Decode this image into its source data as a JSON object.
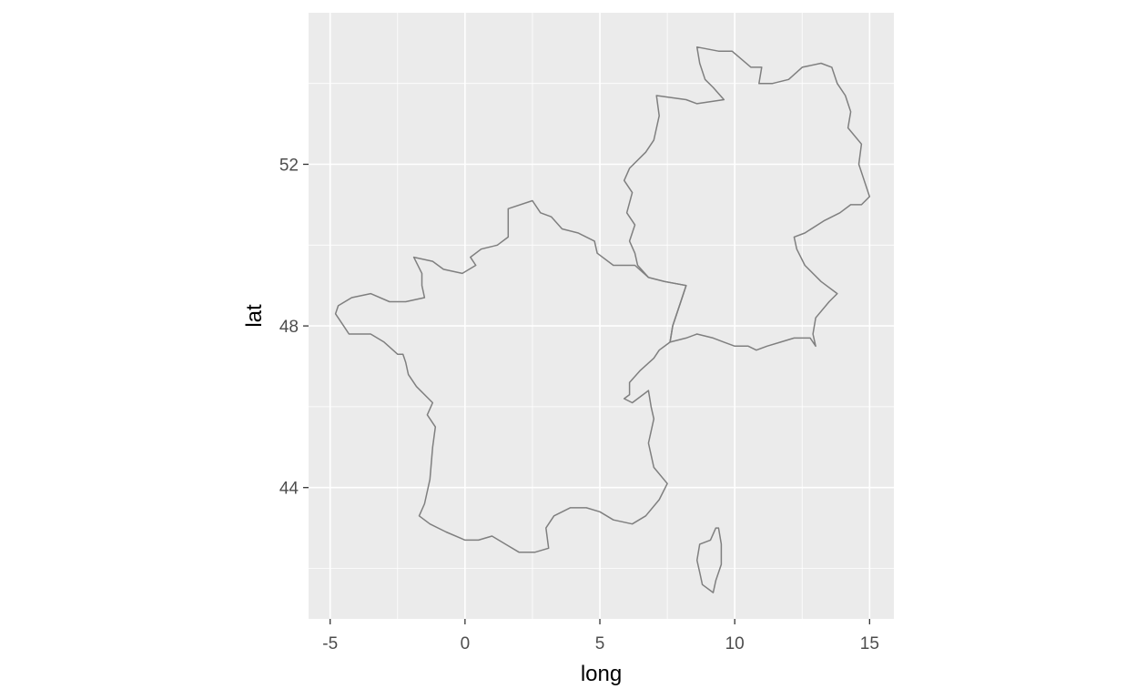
{
  "chart_data": {
    "type": "map",
    "xlabel": "long",
    "ylabel": "lat",
    "xlim": [
      -5.8,
      15.9
    ],
    "ylim": [
      40.75,
      55.75
    ],
    "x_ticks": [
      {
        "value": -5,
        "label": "-5"
      },
      {
        "value": 0,
        "label": "0"
      },
      {
        "value": 5,
        "label": "5"
      },
      {
        "value": 10,
        "label": "10"
      },
      {
        "value": 15,
        "label": "15"
      }
    ],
    "y_ticks": [
      {
        "value": 44,
        "label": "44"
      },
      {
        "value": 48,
        "label": "48"
      },
      {
        "value": 52,
        "label": "52"
      }
    ],
    "x_minor": [
      -2.5,
      2.5,
      7.5,
      12.5
    ],
    "y_minor": [
      42,
      46,
      50,
      54
    ],
    "grid": true,
    "colors": {
      "panel": "#ebebeb",
      "grid": "#ffffff",
      "outline": "#7f7f7f"
    },
    "regions": [
      {
        "name": "France",
        "coords": [
          [
            2.5,
            51.1
          ],
          [
            2.8,
            50.8
          ],
          [
            3.2,
            50.7
          ],
          [
            3.6,
            50.4
          ],
          [
            4.2,
            50.3
          ],
          [
            4.8,
            50.1
          ],
          [
            4.9,
            49.8
          ],
          [
            5.5,
            49.5
          ],
          [
            6.3,
            49.5
          ],
          [
            6.8,
            49.2
          ],
          [
            7.4,
            49.1
          ],
          [
            8.2,
            49.0
          ],
          [
            8.0,
            48.6
          ],
          [
            7.7,
            48.0
          ],
          [
            7.6,
            47.6
          ],
          [
            7.2,
            47.4
          ],
          [
            7.0,
            47.2
          ],
          [
            6.5,
            46.9
          ],
          [
            6.1,
            46.6
          ],
          [
            6.1,
            46.3
          ],
          [
            5.9,
            46.2
          ],
          [
            6.2,
            46.1
          ],
          [
            6.8,
            46.4
          ],
          [
            6.9,
            46.0
          ],
          [
            7.0,
            45.7
          ],
          [
            6.8,
            45.1
          ],
          [
            7.0,
            44.5
          ],
          [
            7.5,
            44.1
          ],
          [
            7.2,
            43.7
          ],
          [
            6.7,
            43.3
          ],
          [
            6.2,
            43.1
          ],
          [
            5.5,
            43.2
          ],
          [
            5.0,
            43.4
          ],
          [
            4.5,
            43.5
          ],
          [
            3.9,
            43.5
          ],
          [
            3.3,
            43.3
          ],
          [
            3.0,
            43.0
          ],
          [
            3.1,
            42.5
          ],
          [
            2.6,
            42.4
          ],
          [
            2.0,
            42.4
          ],
          [
            1.5,
            42.6
          ],
          [
            1.0,
            42.8
          ],
          [
            0.5,
            42.7
          ],
          [
            0.0,
            42.7
          ],
          [
            -0.7,
            42.9
          ],
          [
            -1.3,
            43.1
          ],
          [
            -1.7,
            43.3
          ],
          [
            -1.5,
            43.6
          ],
          [
            -1.3,
            44.2
          ],
          [
            -1.2,
            45.0
          ],
          [
            -1.1,
            45.5
          ],
          [
            -1.4,
            45.8
          ],
          [
            -1.2,
            46.1
          ],
          [
            -1.8,
            46.5
          ],
          [
            -2.1,
            46.8
          ],
          [
            -2.2,
            47.1
          ],
          [
            -2.3,
            47.3
          ],
          [
            -2.5,
            47.3
          ],
          [
            -3.0,
            47.6
          ],
          [
            -3.5,
            47.8
          ],
          [
            -4.3,
            47.8
          ],
          [
            -4.5,
            48.0
          ],
          [
            -4.8,
            48.3
          ],
          [
            -4.7,
            48.5
          ],
          [
            -4.2,
            48.7
          ],
          [
            -3.5,
            48.8
          ],
          [
            -2.8,
            48.6
          ],
          [
            -2.2,
            48.6
          ],
          [
            -1.5,
            48.7
          ],
          [
            -1.6,
            49.0
          ],
          [
            -1.6,
            49.3
          ],
          [
            -1.9,
            49.7
          ],
          [
            -1.2,
            49.6
          ],
          [
            -0.8,
            49.4
          ],
          [
            -0.1,
            49.3
          ],
          [
            0.4,
            49.5
          ],
          [
            0.2,
            49.7
          ],
          [
            0.6,
            49.9
          ],
          [
            1.2,
            50.0
          ],
          [
            1.6,
            50.2
          ],
          [
            1.6,
            50.9
          ],
          [
            2.5,
            51.1
          ]
        ]
      },
      {
        "name": "Corsica",
        "coords": [
          [
            9.4,
            43.0
          ],
          [
            9.5,
            42.6
          ],
          [
            9.5,
            42.1
          ],
          [
            9.3,
            41.7
          ],
          [
            9.2,
            41.4
          ],
          [
            8.8,
            41.6
          ],
          [
            8.7,
            41.9
          ],
          [
            8.6,
            42.2
          ],
          [
            8.7,
            42.6
          ],
          [
            9.1,
            42.7
          ],
          [
            9.3,
            43.0
          ],
          [
            9.4,
            43.0
          ]
        ]
      },
      {
        "name": "Germany",
        "coords": [
          [
            7.6,
            47.6
          ],
          [
            8.2,
            47.7
          ],
          [
            8.6,
            47.8
          ],
          [
            9.2,
            47.7
          ],
          [
            9.6,
            47.6
          ],
          [
            10.0,
            47.5
          ],
          [
            10.5,
            47.5
          ],
          [
            10.8,
            47.4
          ],
          [
            11.2,
            47.5
          ],
          [
            11.7,
            47.6
          ],
          [
            12.2,
            47.7
          ],
          [
            12.8,
            47.7
          ],
          [
            13.0,
            47.5
          ],
          [
            12.9,
            47.8
          ],
          [
            13.0,
            48.2
          ],
          [
            13.5,
            48.6
          ],
          [
            13.8,
            48.8
          ],
          [
            13.2,
            49.1
          ],
          [
            12.6,
            49.5
          ],
          [
            12.3,
            49.9
          ],
          [
            12.2,
            50.2
          ],
          [
            12.6,
            50.3
          ],
          [
            13.3,
            50.6
          ],
          [
            13.9,
            50.8
          ],
          [
            14.3,
            51.0
          ],
          [
            14.7,
            51.0
          ],
          [
            15.0,
            51.2
          ],
          [
            14.8,
            51.6
          ],
          [
            14.6,
            52.0
          ],
          [
            14.7,
            52.5
          ],
          [
            14.2,
            52.9
          ],
          [
            14.3,
            53.3
          ],
          [
            14.1,
            53.7
          ],
          [
            13.8,
            54.0
          ],
          [
            13.6,
            54.4
          ],
          [
            13.2,
            54.5
          ],
          [
            12.5,
            54.4
          ],
          [
            12.0,
            54.1
          ],
          [
            11.4,
            54.0
          ],
          [
            10.9,
            54.0
          ],
          [
            11.0,
            54.4
          ],
          [
            10.6,
            54.4
          ],
          [
            9.9,
            54.8
          ],
          [
            9.4,
            54.8
          ],
          [
            8.6,
            54.9
          ],
          [
            8.7,
            54.5
          ],
          [
            8.9,
            54.1
          ],
          [
            9.2,
            53.9
          ],
          [
            9.6,
            53.6
          ],
          [
            8.6,
            53.5
          ],
          [
            8.2,
            53.6
          ],
          [
            7.1,
            53.7
          ],
          [
            7.2,
            53.2
          ],
          [
            7.0,
            52.6
          ],
          [
            6.7,
            52.3
          ],
          [
            6.1,
            51.9
          ],
          [
            5.9,
            51.6
          ],
          [
            6.2,
            51.3
          ],
          [
            6.0,
            50.8
          ],
          [
            6.3,
            50.5
          ],
          [
            6.1,
            50.1
          ],
          [
            6.3,
            49.8
          ],
          [
            6.4,
            49.5
          ],
          [
            6.8,
            49.2
          ],
          [
            7.4,
            49.1
          ],
          [
            8.2,
            49.0
          ],
          [
            8.0,
            48.6
          ],
          [
            7.7,
            48.0
          ],
          [
            7.6,
            47.6
          ]
        ]
      }
    ]
  }
}
